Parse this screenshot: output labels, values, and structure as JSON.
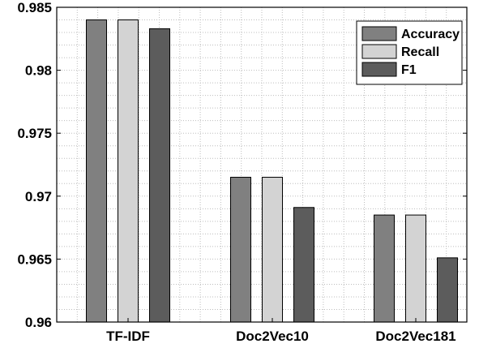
{
  "chart_data": {
    "type": "bar",
    "categories": [
      "TF-IDF",
      "Doc2Vec10",
      "Doc2Vec181"
    ],
    "series": [
      {
        "name": "Accuracy",
        "values": [
          0.984,
          0.9715,
          0.9685
        ],
        "color": "#808080"
      },
      {
        "name": "Recall",
        "values": [
          0.984,
          0.9715,
          0.9685
        ],
        "color": "#d3d3d3"
      },
      {
        "name": "F1",
        "values": [
          0.9833,
          0.9691,
          0.9651
        ],
        "color": "#5c5c5c"
      }
    ],
    "ylim": [
      0.96,
      0.985
    ],
    "yticks": [
      0.96,
      0.965,
      0.97,
      0.975,
      0.98,
      0.985
    ],
    "ytick_labels": [
      "0.96",
      "0.965",
      "0.97",
      "0.975",
      "0.98",
      "0.985"
    ],
    "grid": true,
    "legend_position": "top-right",
    "title": "",
    "xlabel": "",
    "ylabel": ""
  }
}
